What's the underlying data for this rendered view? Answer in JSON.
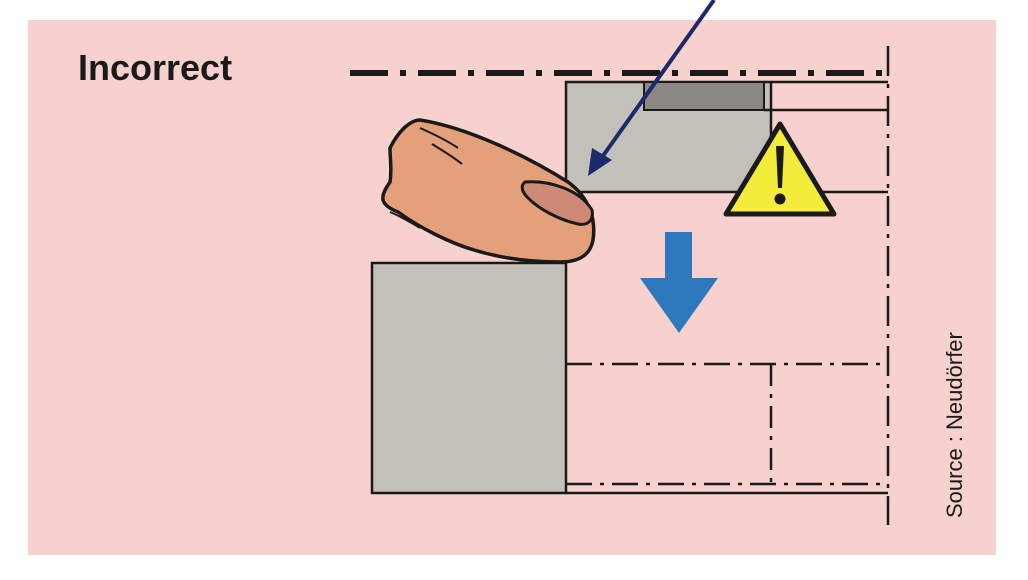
{
  "diagram": {
    "title": "Incorrect",
    "source": "Source : Neudörfer",
    "colors": {
      "background": "#f7d1cd",
      "part_fill": "#c3c0ba",
      "dark_part": "#8b8883",
      "finger": "#e3a07a",
      "nail": "#cf8a77",
      "warning_fill": "#f4ec3b",
      "motion_arrow": "#2e78bd",
      "pointer_arrow": "#1b2a6b",
      "line": "#1a1a1a"
    },
    "icons": {
      "warning": "warning-triangle-icon",
      "motion": "down-arrow-icon",
      "pointer": "pointer-arrow-icon"
    }
  }
}
